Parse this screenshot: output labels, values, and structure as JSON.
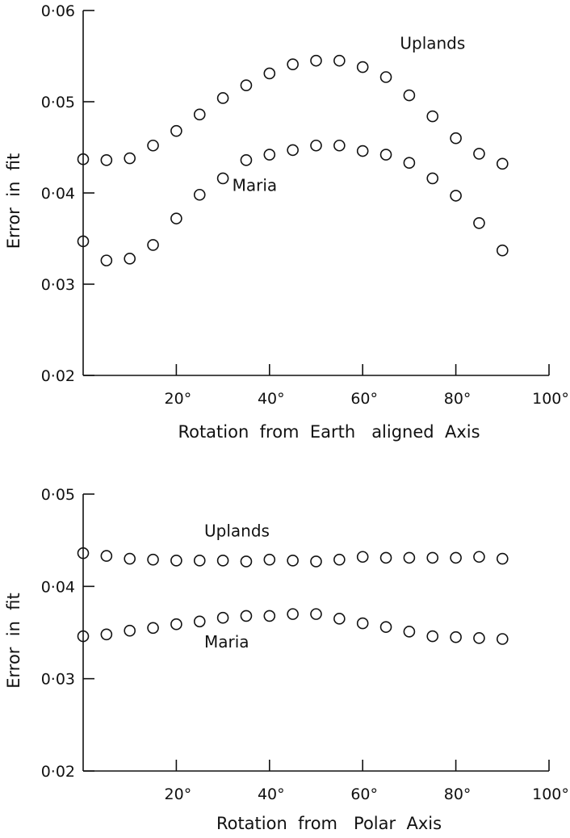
{
  "chart_data": [
    {
      "type": "scatter",
      "title": "",
      "xlabel": "Rotation  from  Earth   aligned  Axis",
      "ylabel": "Error  in  fit",
      "xlim": [
        0,
        100
      ],
      "ylim": [
        0.02,
        0.06
      ],
      "x_tick_labels": [
        "20°",
        "40°",
        "60°",
        "80°",
        "100°"
      ],
      "y_tick_labels": [
        "0·02",
        "0·03",
        "0·04",
        "0·05",
        "0·06"
      ],
      "x_ticks": [
        20,
        40,
        60,
        80,
        100
      ],
      "y_ticks": [
        0.02,
        0.03,
        0.04,
        0.05,
        0.06
      ],
      "grid": false,
      "series": [
        {
          "name": "Uplands",
          "label_at": [
            68,
            0.0558
          ],
          "x": [
            0,
            5,
            10,
            15,
            20,
            25,
            30,
            35,
            40,
            45,
            50,
            55,
            60,
            65,
            70,
            75,
            80,
            85,
            90
          ],
          "y": [
            0.0437,
            0.0436,
            0.0438,
            0.0452,
            0.0468,
            0.0486,
            0.0504,
            0.0518,
            0.0531,
            0.0541,
            0.0545,
            0.0545,
            0.0538,
            0.0527,
            0.0507,
            0.0484,
            0.046,
            0.0443,
            0.0432
          ]
        },
        {
          "name": "Maria",
          "label_at": [
            32,
            0.0402
          ],
          "x": [
            0,
            5,
            10,
            15,
            20,
            25,
            30,
            35,
            40,
            45,
            50,
            55,
            60,
            65,
            70,
            75,
            80,
            85,
            90
          ],
          "y": [
            0.0347,
            0.0326,
            0.0328,
            0.0343,
            0.0372,
            0.0398,
            0.0416,
            0.0436,
            0.0442,
            0.0447,
            0.0452,
            0.0452,
            0.0446,
            0.0442,
            0.0433,
            0.0416,
            0.0397,
            0.0367,
            0.0337
          ]
        }
      ]
    },
    {
      "type": "scatter",
      "title": "",
      "xlabel": "Rotation  from   Polar  Axis",
      "ylabel": "Error  in  fit",
      "xlim": [
        0,
        100
      ],
      "ylim": [
        0.02,
        0.05
      ],
      "x_tick_labels": [
        "20°",
        "40°",
        "60°",
        "80°",
        "100°"
      ],
      "y_tick_labels": [
        "0·02",
        "0·03",
        "0·04",
        "0·05"
      ],
      "x_ticks": [
        20,
        40,
        60,
        80,
        100
      ],
      "y_ticks": [
        0.02,
        0.03,
        0.04,
        0.05
      ],
      "grid": false,
      "series": [
        {
          "name": "Uplands",
          "label_at": [
            26,
            0.0454
          ],
          "x": [
            0,
            5,
            10,
            15,
            20,
            25,
            30,
            35,
            40,
            45,
            50,
            55,
            60,
            65,
            70,
            75,
            80,
            85,
            90
          ],
          "y": [
            0.0436,
            0.0433,
            0.043,
            0.0429,
            0.0428,
            0.0428,
            0.0428,
            0.0427,
            0.0429,
            0.0428,
            0.0427,
            0.0429,
            0.0432,
            0.0431,
            0.0431,
            0.0431,
            0.0431,
            0.0432,
            0.043
          ]
        },
        {
          "name": "Maria",
          "label_at": [
            26,
            0.0334
          ],
          "x": [
            0,
            5,
            10,
            15,
            20,
            25,
            30,
            35,
            40,
            45,
            50,
            55,
            60,
            65,
            70,
            75,
            80,
            85,
            90
          ],
          "y": [
            0.0346,
            0.0348,
            0.0352,
            0.0355,
            0.0359,
            0.0362,
            0.0366,
            0.0368,
            0.0368,
            0.037,
            0.037,
            0.0365,
            0.036,
            0.0356,
            0.0351,
            0.0346,
            0.0345,
            0.0344,
            0.0343
          ]
        }
      ]
    }
  ]
}
